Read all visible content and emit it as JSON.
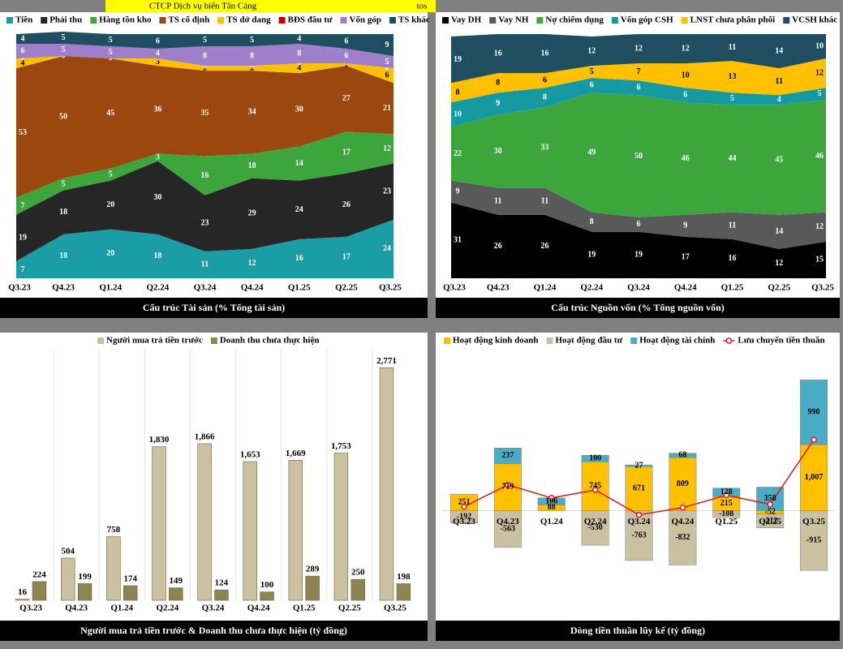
{
  "header": {
    "title": "CTCP Dịch vụ biển Tân Cảng",
    "ticker": "tos"
  },
  "chart_data": [
    {
      "type": "area",
      "stacked": true,
      "title": "Cấu trúc Tài sản (% Tổng tài sản)",
      "categories": [
        "Q3.23",
        "Q4.23",
        "Q1.24",
        "Q2.24",
        "Q3.24",
        "Q4.24",
        "Q1.25",
        "Q2.25",
        "Q3.25"
      ],
      "ylim": [
        0,
        100
      ],
      "series": [
        {
          "name": "Tiền",
          "color": "#1a9da4",
          "values": [
            7,
            18,
            20,
            18,
            11,
            12,
            16,
            17,
            24
          ]
        },
        {
          "name": "Phải thu",
          "color": "#262626",
          "values": [
            19,
            18,
            20,
            30,
            23,
            29,
            24,
            26,
            23
          ]
        },
        {
          "name": "Hàng tồn kho",
          "color": "#3ca63c",
          "values": [
            7,
            5,
            5,
            3,
            16,
            10,
            14,
            17,
            12
          ]
        },
        {
          "name": "TS cố định",
          "color": "#9b470d",
          "values": [
            53,
            50,
            45,
            36,
            35,
            34,
            30,
            27,
            21
          ]
        },
        {
          "name": "TS dở dang",
          "color": "#ffc000",
          "values": [
            4,
            0,
            0,
            3,
            2,
            2,
            4,
            1,
            6
          ]
        },
        {
          "name": "BĐS đầu tư",
          "color": "#c00000",
          "values": [
            0,
            0,
            0,
            0,
            0,
            0,
            0,
            0,
            0
          ]
        },
        {
          "name": "Vốn góp",
          "color": "#9f7fc9",
          "values": [
            6,
            5,
            5,
            4,
            8,
            8,
            8,
            6,
            5
          ]
        },
        {
          "name": "TS khác",
          "color": "#1f4e60",
          "values": [
            4,
            5,
            5,
            6,
            5,
            5,
            4,
            6,
            9
          ]
        }
      ]
    },
    {
      "type": "area",
      "stacked": true,
      "title": "Cấu trúc Nguồn vốn (% Tổng nguồn vốn)",
      "categories": [
        "Q3.23",
        "Q4.23",
        "Q1.24",
        "Q2.24",
        "Q3.24",
        "Q4.24",
        "Q1.25",
        "Q2.25",
        "Q3.25"
      ],
      "ylim": [
        0,
        100
      ],
      "series": [
        {
          "name": "Vay DH",
          "color": "#000000",
          "values": [
            31,
            26,
            26,
            19,
            19,
            17,
            16,
            12,
            15
          ]
        },
        {
          "name": "Vay NH",
          "color": "#595959",
          "values": [
            9,
            11,
            11,
            8,
            6,
            9,
            11,
            14,
            12
          ]
        },
        {
          "name": "Nợ chiếm dụng",
          "color": "#3ca63c",
          "values": [
            22,
            30,
            33,
            49,
            50,
            46,
            44,
            45,
            46
          ]
        },
        {
          "name": "Vốn góp CSH",
          "color": "#149aa0",
          "values": [
            10,
            9,
            8,
            6,
            6,
            6,
            5,
            4,
            5
          ]
        },
        {
          "name": "LNST chưa phân phối",
          "color": "#ffc000",
          "values": [
            8,
            8,
            6,
            5,
            7,
            10,
            13,
            11,
            12
          ]
        },
        {
          "name": "VCSH khác",
          "color": "#1f4e60",
          "values": [
            19,
            16,
            16,
            12,
            12,
            12,
            11,
            14,
            10
          ]
        }
      ]
    },
    {
      "type": "bar",
      "title": "Người mua trả tiền trước & Doanh thu chưa thực hiện (tỷ đồng)",
      "categories": [
        "Q3.23",
        "Q4.23",
        "Q1.24",
        "Q2.24",
        "Q3.24",
        "Q4.24",
        "Q1.25",
        "Q2.25",
        "Q3.25"
      ],
      "ylim": [
        0,
        2900
      ],
      "series": [
        {
          "name": "Người mua trả tiền trước",
          "color": "#cac1a1",
          "values": [
            16,
            504,
            758,
            1830,
            1866,
            1653,
            1669,
            1753,
            2771
          ],
          "value_labels": [
            "16",
            "504",
            "758",
            "1,830",
            "1,866",
            "1,653",
            "1,669",
            "1,753",
            "2,771"
          ]
        },
        {
          "name": "Doanh thu chưa thực hiện",
          "color": "#8d8551",
          "values": [
            224,
            199,
            174,
            149,
            124,
            100,
            289,
            250,
            198
          ]
        }
      ]
    },
    {
      "type": "bar",
      "stacked": true,
      "title": "Dòng tiền thuần lũy kế (tỷ đồng)",
      "categories": [
        "Q3.23",
        "Q4.23",
        "Q1.24",
        "Q2.24",
        "Q3.24",
        "Q4.24",
        "Q1.25",
        "Q2.25",
        "Q3.25"
      ],
      "ylim": [
        -1000,
        2100
      ],
      "series": [
        {
          "name": "Hoạt động kinh doanh",
          "color": "#ffc000",
          "values": [
            251,
            719,
            88,
            745,
            671,
            809,
            215,
            -52,
            1007
          ],
          "value_labels": [
            "251",
            "719",
            "88",
            "745",
            "671",
            "809",
            "215",
            "-52",
            "1,007"
          ]
        },
        {
          "name": "Hoạt động đầu tư",
          "color": "#cac1a1",
          "values": [
            -192,
            -563,
            null,
            -530,
            -763,
            -832,
            -108,
            -212,
            -915
          ]
        },
        {
          "name": "Hoạt động tài chính",
          "color": "#4bacc6",
          "values": [
            null,
            237,
            106,
            100,
            27,
            68,
            128,
            358,
            990
          ]
        },
        {
          "name": "Lưu chuyển tiền thuần",
          "type": "line",
          "color": "#e31a1c",
          "values": [
            59,
            393,
            194,
            315,
            -65,
            45,
            235,
            94,
            1082
          ]
        }
      ]
    }
  ]
}
